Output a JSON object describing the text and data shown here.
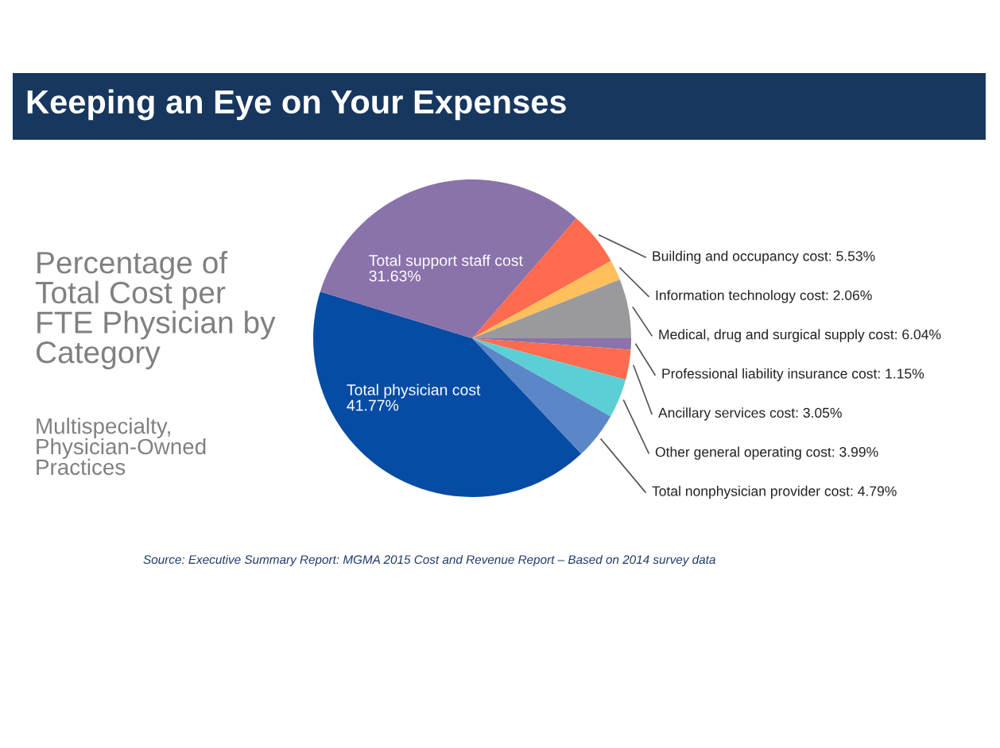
{
  "chart_data": {
    "type": "pie",
    "title": "Percentage of\nTotal Cost per\nFTE Physician by\nCategory",
    "subtitle": "Multispecialty,\nPhysician-Owned\nPractices",
    "annotations": [
      "Keeping an Eye on Your Expenses",
      "Source: Executive Summary Report: MGMA 2015 Cost and Revenue Report – Based on 2014 survey data"
    ],
    "categories": [
      "Professional liability insurance cost",
      "Ancillary services cost",
      "Other general operating cost",
      "Total nonphysician provider cost",
      "Total physician cost",
      "Total support staff cost",
      "Building and occupancy cost",
      "Information technology cost",
      "Medical, drug and surgical supply cost"
    ],
    "values": [
      1.15,
      3.05,
      3.99,
      4.79,
      41.77,
      31.63,
      5.53,
      2.06,
      6.04
    ],
    "value_labels": [
      "1.15%",
      "3.05%",
      "3.99%",
      "4.79%",
      "41.77%",
      "31.63%",
      "5.53%",
      "2.06%",
      "6.04%"
    ],
    "colors": [
      "#8a72ab",
      "#ff6b4f",
      "#5ccfd6",
      "#5b87c9",
      "#064ca4",
      "#8a72ab",
      "#ff6b4f",
      "#ffbf5a",
      "#9a9a9c"
    ]
  }
}
